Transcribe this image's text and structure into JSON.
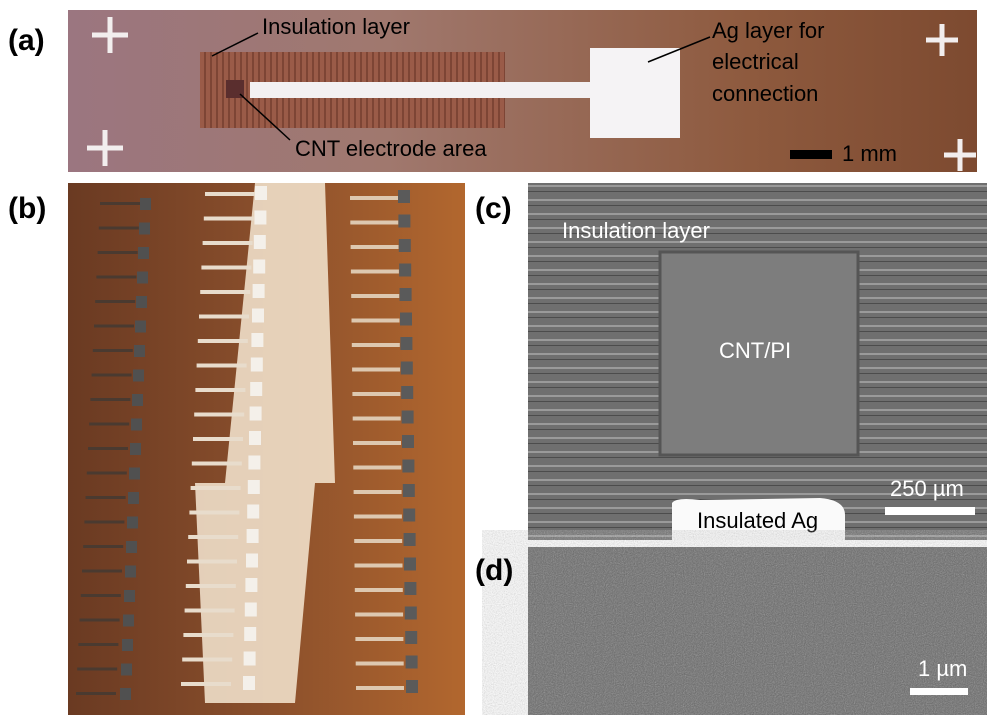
{
  "panels": [
    {
      "label": "(a)",
      "annotations": [
        "Insulation layer",
        "Ag layer for",
        "electrical",
        "connection",
        "CNT electrode area"
      ],
      "scale_bar": "1 mm"
    },
    {
      "label": "(b)"
    },
    {
      "label": "(c)",
      "annotations": [
        "Insulation layer",
        "CNT/PI",
        "Insulated Ag"
      ],
      "scale_bar": "250 µm"
    },
    {
      "label": "(d)",
      "scale_bar": "1 µm"
    }
  ]
}
